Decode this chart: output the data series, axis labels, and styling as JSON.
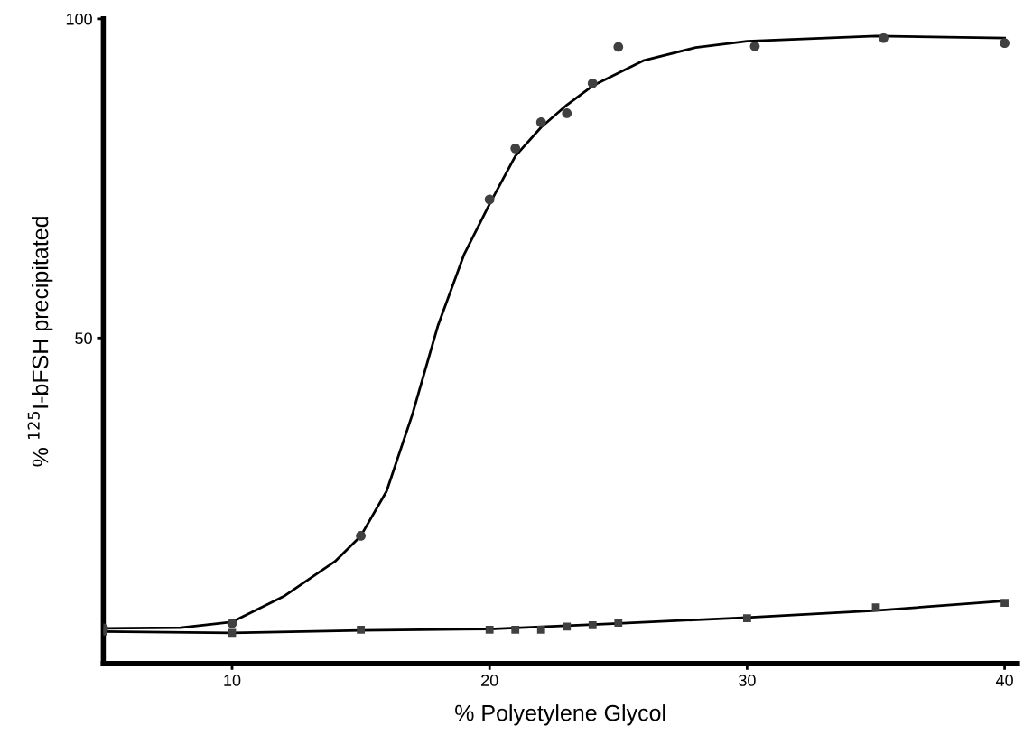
{
  "chart_data": {
    "type": "scatter",
    "xlabel": "% Polyetylene Glycol",
    "ylabel": "% $^{125}$I-bFSH precipitated",
    "xlim": [
      5,
      40.5
    ],
    "ylim": [
      -1,
      100
    ],
    "xticks": [
      10,
      20,
      30,
      40
    ],
    "yticks": [
      50,
      100
    ],
    "grid": false,
    "legend": false,
    "series": [
      {
        "marker": "circle",
        "color": "#404040",
        "x": [
          5,
          10,
          15,
          20,
          21,
          22,
          23,
          24,
          25,
          30.3,
          35.3,
          40
        ],
        "values": [
          4.5,
          5.3,
          19,
          71.7,
          79.7,
          83.8,
          85.2,
          89.9,
          95.6,
          95.7,
          97,
          96.2
        ]
      },
      {
        "marker": "square",
        "color": "#404040",
        "x": [
          5,
          10,
          15,
          20,
          21,
          22,
          23,
          24,
          25,
          30,
          35,
          40
        ],
        "values": [
          4,
          3.8,
          4.3,
          4.3,
          4.3,
          4.3,
          4.8,
          5,
          5.4,
          6.1,
          7.8,
          8.5
        ]
      },
      {
        "type": "line",
        "marker": "none",
        "line_style": "solid",
        "color": "#000000",
        "x": [
          5,
          8,
          10,
          12,
          14,
          15,
          16,
          17,
          18,
          19,
          20,
          21,
          22,
          23,
          24,
          26,
          28,
          30,
          35,
          40
        ],
        "values": [
          4.5,
          4.6,
          5.5,
          9.5,
          15,
          19,
          26,
          38,
          52,
          63,
          71,
          78.5,
          83,
          86.5,
          89.5,
          93.5,
          95.5,
          96.5,
          97.3,
          97
        ]
      },
      {
        "type": "line",
        "marker": "none",
        "line_style": "solid",
        "color": "#000000",
        "x": [
          5,
          10,
          15,
          20,
          25,
          30,
          35,
          40
        ],
        "values": [
          4,
          3.8,
          4.2,
          4.4,
          5.3,
          6.2,
          7.3,
          8.8
        ]
      }
    ]
  }
}
